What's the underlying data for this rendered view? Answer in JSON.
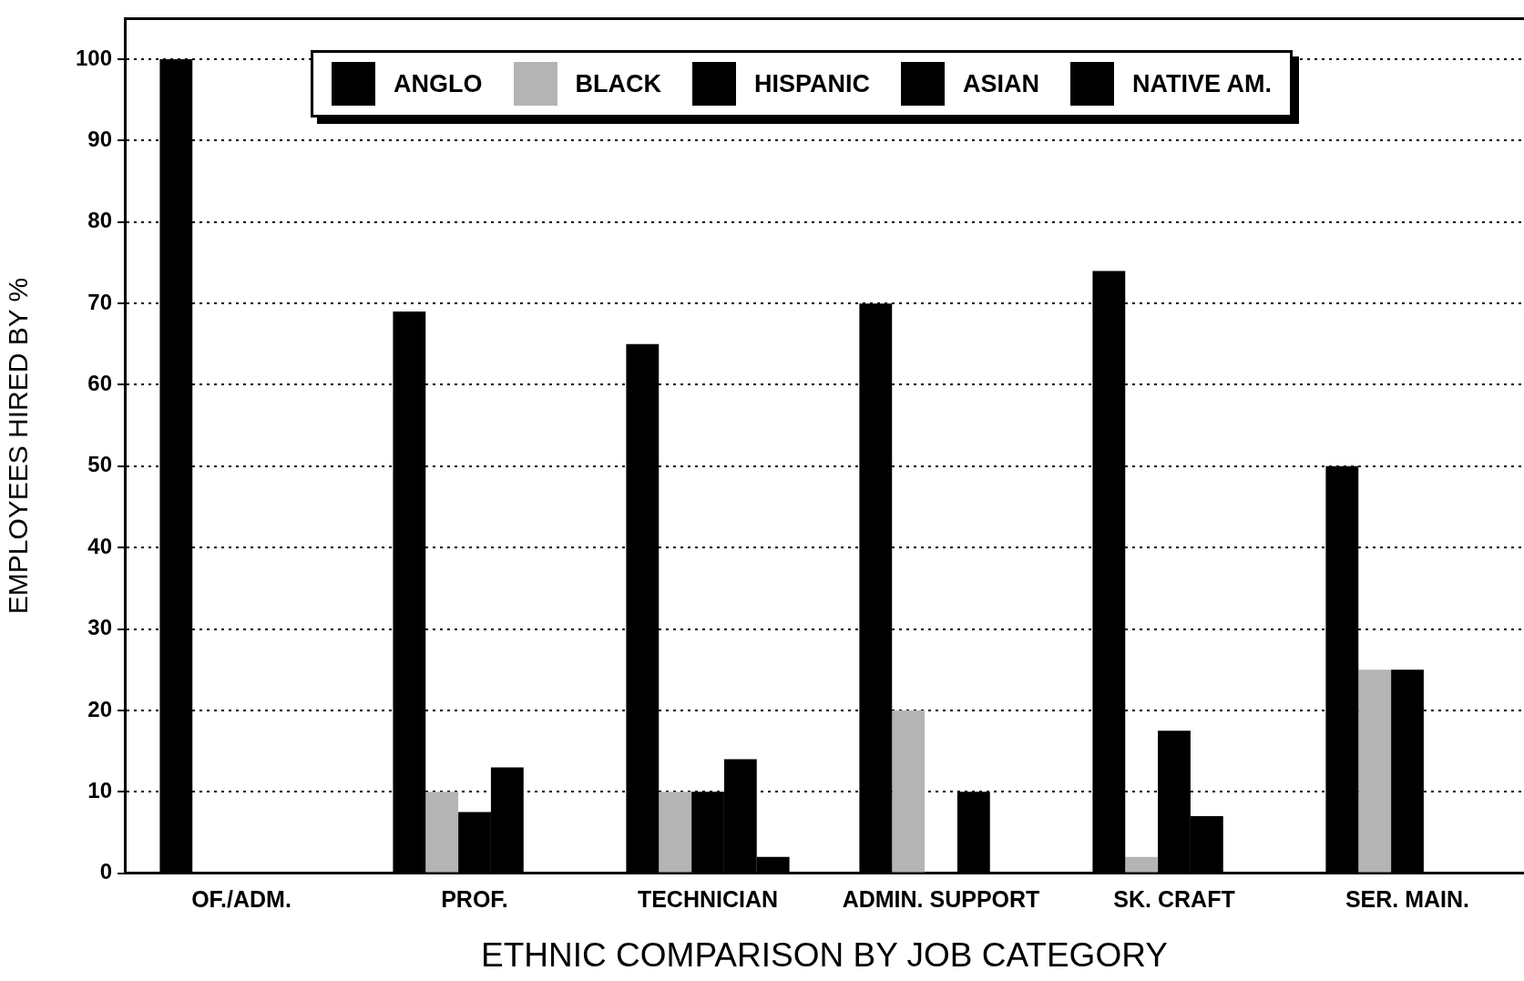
{
  "chart_data": {
    "type": "bar",
    "xlabel": "ETHNIC COMPARISON BY JOB CATEGORY",
    "ylabel": "EMPLOYEES HIRED BY %",
    "categories": [
      "OF./ADM.",
      "PROF.",
      "TECHNICIAN",
      "ADMIN. SUPPORT",
      "SK. CRAFT",
      "SER. MAIN."
    ],
    "series": [
      {
        "name": "ANGLO",
        "color": "#000000",
        "values": [
          100,
          69,
          65,
          70,
          74,
          50
        ]
      },
      {
        "name": "BLACK",
        "color": "#b4b4b4",
        "values": [
          0,
          10,
          10,
          20,
          2,
          25
        ]
      },
      {
        "name": "HISPANIC",
        "color": "#000000",
        "values": [
          0,
          7.5,
          10,
          0,
          17.5,
          25
        ]
      },
      {
        "name": "ASIAN",
        "color": "#000000",
        "values": [
          0,
          13,
          14,
          10,
          7,
          0
        ]
      },
      {
        "name": "NATIVE AM.",
        "color": "#000000",
        "values": [
          0,
          0,
          2,
          0,
          0,
          0
        ]
      }
    ],
    "ylim": [
      0,
      105
    ],
    "yticks": [
      0,
      10,
      20,
      30,
      40,
      50,
      60,
      70,
      80,
      90,
      100
    ],
    "grid": "y",
    "legend": "top"
  }
}
